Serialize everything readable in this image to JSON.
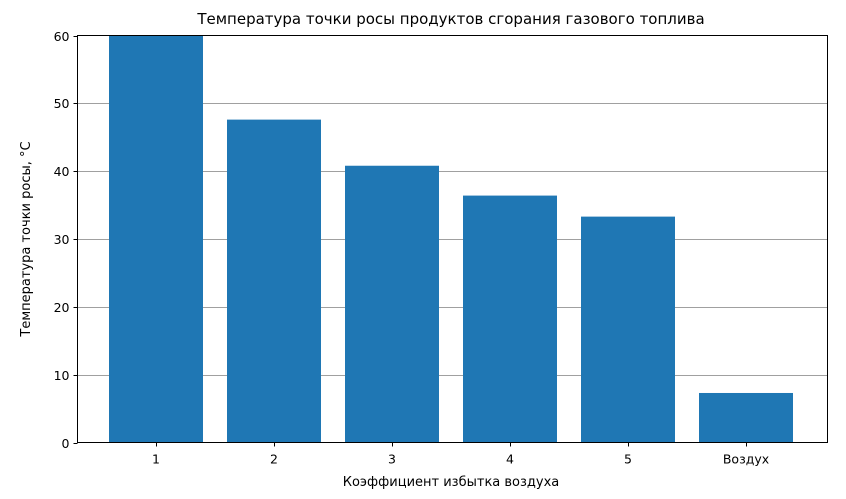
{
  "chart_data": {
    "type": "bar",
    "title": "Температура точки росы продуктов сгорания газового топлива",
    "xlabel": "Коэффициент избытка воздуха",
    "ylabel": "Температура точки росы, °C",
    "categories": [
      "1",
      "2",
      "3",
      "4",
      "5",
      "Воздух"
    ],
    "values": [
      60,
      47.6,
      40.8,
      36.4,
      33.3,
      7.3
    ],
    "ylim": [
      0,
      60
    ],
    "yticks": [
      0,
      10,
      20,
      30,
      40,
      50,
      60
    ],
    "grid": "y",
    "bar_color": "#1f77b4"
  }
}
